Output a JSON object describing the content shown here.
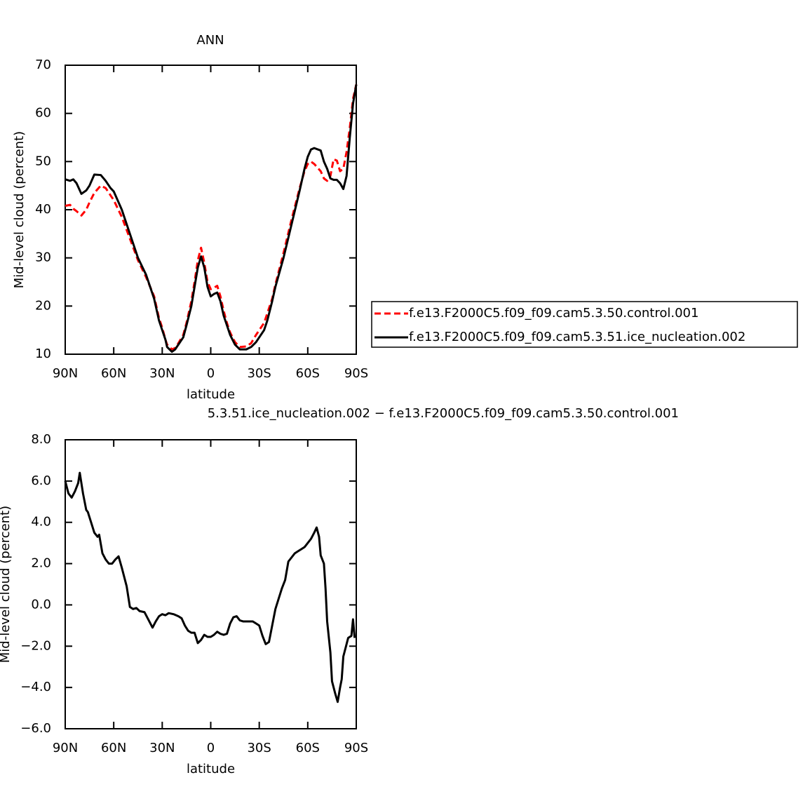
{
  "chart_data": [
    {
      "type": "line",
      "title": "ANN",
      "xlabel": "latitude",
      "ylabel": "Mid-level cloud (percent)",
      "x": [
        90,
        87,
        85,
        83,
        80,
        77,
        75,
        72,
        68,
        65,
        62,
        60,
        55,
        50,
        45,
        40,
        35,
        32,
        30,
        28,
        27,
        24,
        22,
        20,
        17,
        15,
        12,
        10,
        8,
        6,
        4,
        2,
        0,
        -2,
        -4,
        -6,
        -8,
        -10,
        -12,
        -15,
        -18,
        -22,
        -25,
        -28,
        -30,
        -33,
        -35,
        -38,
        -40,
        -45,
        -50,
        -55,
        -58,
        -60,
        -62,
        -64,
        -68,
        -70,
        -72,
        -74,
        -76,
        -78,
        -80,
        -82,
        -84,
        -86,
        -88,
        -90
      ],
      "xlim": [
        90,
        -90
      ],
      "xticks": [
        {
          "value": 90,
          "label": "90N"
        },
        {
          "value": 60,
          "label": "60N"
        },
        {
          "value": 30,
          "label": "30N"
        },
        0,
        {
          "value": -30,
          "label": "30S"
        },
        {
          "value": -60,
          "label": "60S"
        },
        {
          "value": -90,
          "label": "90S"
        }
      ],
      "ylim": [
        10,
        70
      ],
      "yticks": [
        10,
        20,
        30,
        40,
        50,
        60,
        70
      ],
      "legend": "right",
      "series": [
        {
          "name": "f.e13.F2000C5.f09_f09.cam5.3.50.control.001",
          "color": "#ff0000",
          "dash": true,
          "values": [
            40.8,
            41,
            40.2,
            39.7,
            38.8,
            40,
            41.5,
            43.5,
            45,
            44.5,
            43,
            42,
            38.5,
            34,
            29.5,
            26,
            22,
            17.5,
            15.5,
            13,
            12,
            11,
            11.3,
            12.3,
            14,
            16.5,
            21,
            25,
            29.5,
            32.1,
            29,
            25,
            23.5,
            23.8,
            24.2,
            22,
            19,
            16.5,
            14.5,
            12.5,
            11.5,
            11.6,
            12.3,
            14,
            15,
            16.5,
            18.5,
            21.5,
            24.5,
            31,
            38,
            44.5,
            48,
            49.5,
            50,
            49.5,
            48,
            46.5,
            46,
            47,
            50.5,
            50.2,
            48,
            48.5,
            52,
            57,
            63,
            66
          ]
        },
        {
          "name": "f.e13.F2000C5.f09_f09.cam5.3.51.ice_nucleation.002",
          "color": "#000000",
          "dash": false,
          "values": [
            46.3,
            46,
            46.3,
            45.5,
            43.3,
            44,
            45,
            47.3,
            47.2,
            46,
            44.5,
            43.8,
            40,
            35,
            30,
            26.5,
            21.5,
            17,
            15,
            13,
            11.5,
            10.5,
            11,
            12,
            13.5,
            16,
            20,
            24,
            28,
            30.3,
            28,
            24,
            22,
            22.5,
            22.8,
            21,
            18,
            16,
            14,
            12,
            11,
            11,
            11.5,
            12.5,
            13.5,
            15,
            17,
            21,
            24,
            30,
            37,
            44,
            48.5,
            51,
            52.5,
            52.8,
            52.3,
            50,
            48.5,
            46.5,
            46.2,
            46.2,
            45.5,
            44.3,
            47,
            55,
            62,
            66
          ]
        }
      ]
    },
    {
      "type": "line",
      "title": "5.3.51.ice_nucleation.002 − f.e13.F2000C5.f09_f09.cam5.3.50.control.001",
      "xlabel": "latitude",
      "ylabel": "Mid-level cloud (percent)",
      "x": [
        90,
        88,
        86,
        84,
        82,
        81,
        79,
        77,
        76,
        74,
        72,
        70,
        69,
        67,
        65,
        63,
        61,
        59,
        57,
        55,
        52,
        50,
        48,
        46,
        44,
        41,
        38,
        36,
        34,
        32,
        30,
        28,
        26,
        23,
        20,
        18,
        16,
        14,
        12,
        10,
        8,
        6,
        4,
        2,
        0,
        -2,
        -4,
        -6,
        -8,
        -10,
        -12,
        -14,
        -16,
        -18,
        -20,
        -22,
        -24,
        -26,
        -28,
        -30,
        -32,
        -34,
        -36,
        -38,
        -40,
        -42,
        -44,
        -46,
        -48,
        -50,
        -52,
        -54,
        -56,
        -58,
        -60,
        -62,
        -64,
        -65.5,
        -67,
        -68,
        -70,
        -71,
        -72,
        -74,
        -75,
        -77,
        -78.5,
        -80,
        -81,
        -82,
        -84,
        -85,
        -87,
        -88,
        -89
      ],
      "xlim": [
        90,
        -90
      ],
      "xticks": [
        {
          "value": 90,
          "label": "90N"
        },
        {
          "value": 60,
          "label": "60N"
        },
        {
          "value": 30,
          "label": "30N"
        },
        0,
        {
          "value": -30,
          "label": "30S"
        },
        {
          "value": -60,
          "label": "60S"
        },
        {
          "value": -90,
          "label": "90S"
        }
      ],
      "ylim": [
        -6,
        8
      ],
      "yticks": [
        {
          "value": -6,
          "label": "−6.0"
        },
        {
          "value": -4,
          "label": "−4.0"
        },
        {
          "value": -2,
          "label": "−2.0"
        },
        {
          "value": 0,
          "label": "0.0"
        },
        {
          "value": 2,
          "label": "2.0"
        },
        {
          "value": 4,
          "label": "4.0"
        },
        {
          "value": 6,
          "label": "6.0"
        },
        {
          "value": 8,
          "label": "8.0"
        }
      ],
      "series": [
        {
          "color": "#000000",
          "dash": false,
          "values": [
            6.0,
            5.4,
            5.2,
            5.5,
            5.9,
            6.4,
            5.4,
            4.6,
            4.5,
            4.0,
            3.5,
            3.3,
            3.4,
            2.5,
            2.2,
            2.0,
            2.0,
            2.2,
            2.35,
            1.8,
            0.9,
            -0.1,
            -0.2,
            -0.15,
            -0.3,
            -0.35,
            -0.8,
            -1.1,
            -0.8,
            -0.55,
            -0.45,
            -0.5,
            -0.4,
            -0.45,
            -0.55,
            -0.65,
            -1.0,
            -1.25,
            -1.35,
            -1.35,
            -1.85,
            -1.7,
            -1.45,
            -1.55,
            -1.55,
            -1.45,
            -1.3,
            -1.4,
            -1.45,
            -1.4,
            -0.9,
            -0.6,
            -0.55,
            -0.75,
            -0.8,
            -0.8,
            -0.8,
            -0.8,
            -0.9,
            -1.0,
            -1.5,
            -1.9,
            -1.8,
            -1.0,
            -0.2,
            0.3,
            0.8,
            1.2,
            2.1,
            2.3,
            2.5,
            2.6,
            2.7,
            2.8,
            3.0,
            3.2,
            3.5,
            3.75,
            3.3,
            2.4,
            2.0,
            0.8,
            -0.8,
            -2.3,
            -3.7,
            -4.3,
            -4.7,
            -4.0,
            -3.6,
            -2.5,
            -1.9,
            -1.6,
            -1.5,
            -0.7,
            -1.6
          ]
        }
      ]
    }
  ]
}
